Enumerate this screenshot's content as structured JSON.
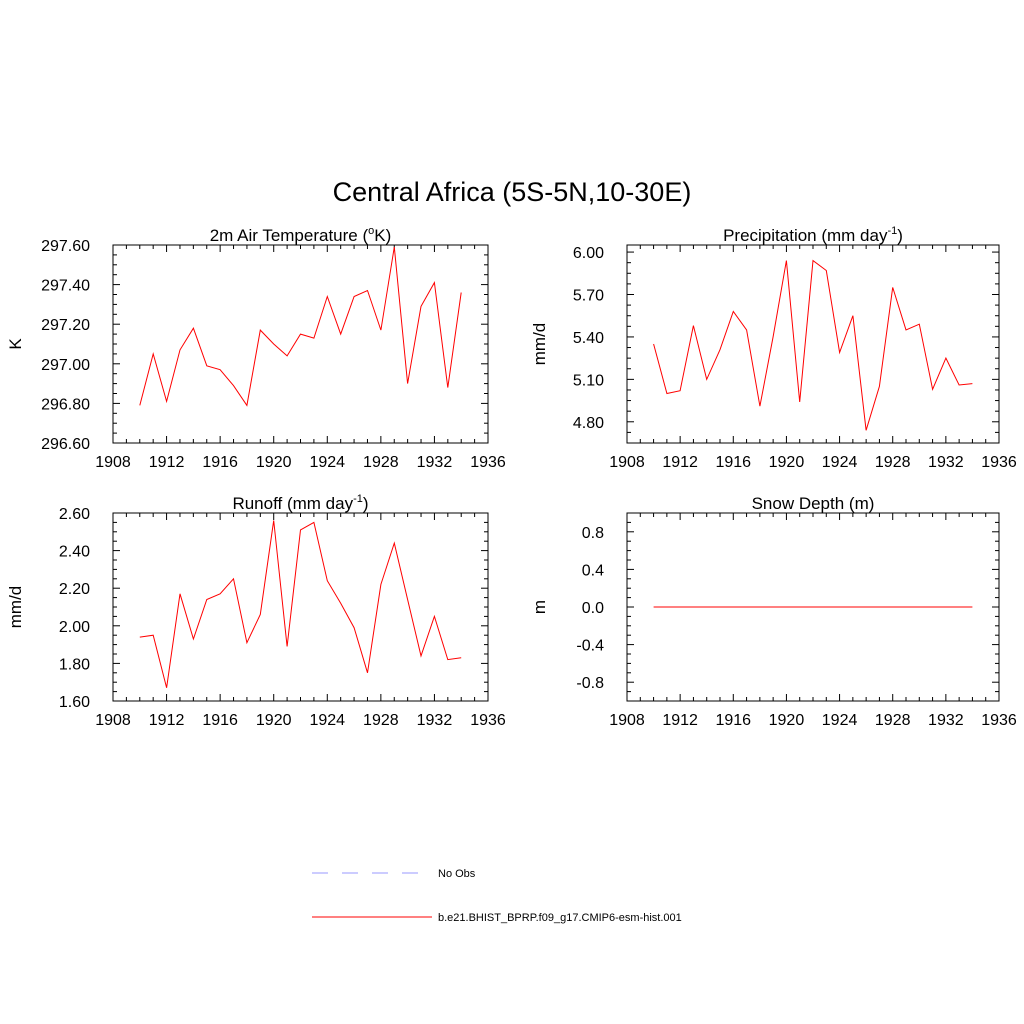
{
  "figure": {
    "title": "Central Africa (5S-5N,10-30E)"
  },
  "legend": {
    "items": [
      {
        "label": "No Obs",
        "color": "#9999ff",
        "dash": true
      },
      {
        "label": "b.e21.BHIST_BPRP.f09_g17.CMIP6-esm-hist.001",
        "color": "#ff0000",
        "dash": false
      }
    ]
  },
  "chart_data": [
    {
      "type": "line",
      "title": "2m Air Temperature (oK)",
      "title_main": "2m Air Temperature (",
      "title_sup": "o",
      "title_tail": "K)",
      "xlabel": "",
      "ylabel": "K",
      "xlim": [
        1908,
        1936
      ],
      "ylim": [
        296.6,
        297.6
      ],
      "xticks": [
        1908,
        1912,
        1916,
        1920,
        1924,
        1928,
        1932,
        1936
      ],
      "yticks": [
        "296.60",
        "296.80",
        "297.00",
        "297.20",
        "297.40",
        "297.60"
      ],
      "color": "#ff0000",
      "x": [
        1910,
        1911,
        1912,
        1913,
        1914,
        1915,
        1916,
        1917,
        1918,
        1919,
        1920,
        1921,
        1922,
        1923,
        1924,
        1925,
        1926,
        1927,
        1928,
        1929,
        1930,
        1931,
        1932,
        1933,
        1934
      ],
      "y": [
        296.79,
        297.05,
        296.81,
        297.07,
        297.18,
        296.99,
        296.97,
        296.89,
        296.79,
        297.17,
        297.1,
        297.04,
        297.15,
        297.13,
        297.34,
        297.15,
        297.34,
        297.37,
        297.17,
        297.59,
        296.9,
        297.29,
        297.41,
        296.88,
        297.36
      ]
    },
    {
      "type": "line",
      "title": "Precipitation (mm day-1)",
      "title_main": "Precipitation (mm day",
      "title_sup": "-1",
      "title_tail": ")",
      "xlabel": "",
      "ylabel": "mm/d",
      "xlim": [
        1908,
        1936
      ],
      "ylim": [
        4.65,
        6.05
      ],
      "xticks": [
        1908,
        1912,
        1916,
        1920,
        1924,
        1928,
        1932,
        1936
      ],
      "yticks": [
        "4.80",
        "5.10",
        "5.40",
        "5.70",
        "6.00"
      ],
      "color": "#ff0000",
      "x": [
        1910,
        1911,
        1912,
        1913,
        1914,
        1915,
        1916,
        1917,
        1918,
        1919,
        1920,
        1921,
        1922,
        1923,
        1924,
        1925,
        1926,
        1927,
        1928,
        1929,
        1930,
        1931,
        1932,
        1933,
        1934
      ],
      "y": [
        5.35,
        5.0,
        5.02,
        5.48,
        5.1,
        5.31,
        5.58,
        5.45,
        4.91,
        5.4,
        5.94,
        4.94,
        5.94,
        5.87,
        5.29,
        5.55,
        4.74,
        5.05,
        5.75,
        5.45,
        5.49,
        5.03,
        5.25,
        5.06,
        5.07
      ]
    },
    {
      "type": "line",
      "title": "Runoff (mm day-1)",
      "title_main": "Runoff (mm day",
      "title_sup": "-1",
      "title_tail": ")",
      "xlabel": "",
      "ylabel": "mm/d",
      "xlim": [
        1908,
        1936
      ],
      "ylim": [
        1.6,
        2.6
      ],
      "xticks": [
        1908,
        1912,
        1916,
        1920,
        1924,
        1928,
        1932,
        1936
      ],
      "yticks": [
        "1.60",
        "1.80",
        "2.00",
        "2.20",
        "2.40",
        "2.60"
      ],
      "color": "#ff0000",
      "x": [
        1910,
        1911,
        1912,
        1913,
        1914,
        1915,
        1916,
        1917,
        1918,
        1919,
        1920,
        1921,
        1922,
        1923,
        1924,
        1925,
        1926,
        1927,
        1928,
        1929,
        1930,
        1931,
        1932,
        1933,
        1934
      ],
      "y": [
        1.94,
        1.95,
        1.67,
        2.17,
        1.93,
        2.14,
        2.17,
        2.25,
        1.91,
        2.06,
        2.56,
        1.89,
        2.51,
        2.55,
        2.24,
        2.12,
        1.99,
        1.75,
        2.22,
        2.44,
        2.14,
        1.84,
        2.05,
        1.82,
        1.83
      ]
    },
    {
      "type": "line",
      "title": "Snow Depth (m)",
      "title_main": "Snow Depth (m)",
      "title_sup": "",
      "title_tail": "",
      "xlabel": "",
      "ylabel": "m",
      "xlim": [
        1908,
        1936
      ],
      "ylim": [
        -1.0,
        1.0
      ],
      "xticks": [
        1908,
        1912,
        1916,
        1920,
        1924,
        1928,
        1932,
        1936
      ],
      "yticks": [
        "-0.8",
        "-0.4",
        "0.0",
        "0.4",
        "0.8"
      ],
      "color": "#ff0000",
      "x": [
        1910,
        1911,
        1912,
        1913,
        1914,
        1915,
        1916,
        1917,
        1918,
        1919,
        1920,
        1921,
        1922,
        1923,
        1924,
        1925,
        1926,
        1927,
        1928,
        1929,
        1930,
        1931,
        1932,
        1933,
        1934
      ],
      "y": [
        0,
        0,
        0,
        0,
        0,
        0,
        0,
        0,
        0,
        0,
        0,
        0,
        0,
        0,
        0,
        0,
        0,
        0,
        0,
        0,
        0,
        0,
        0,
        0,
        0
      ]
    }
  ]
}
